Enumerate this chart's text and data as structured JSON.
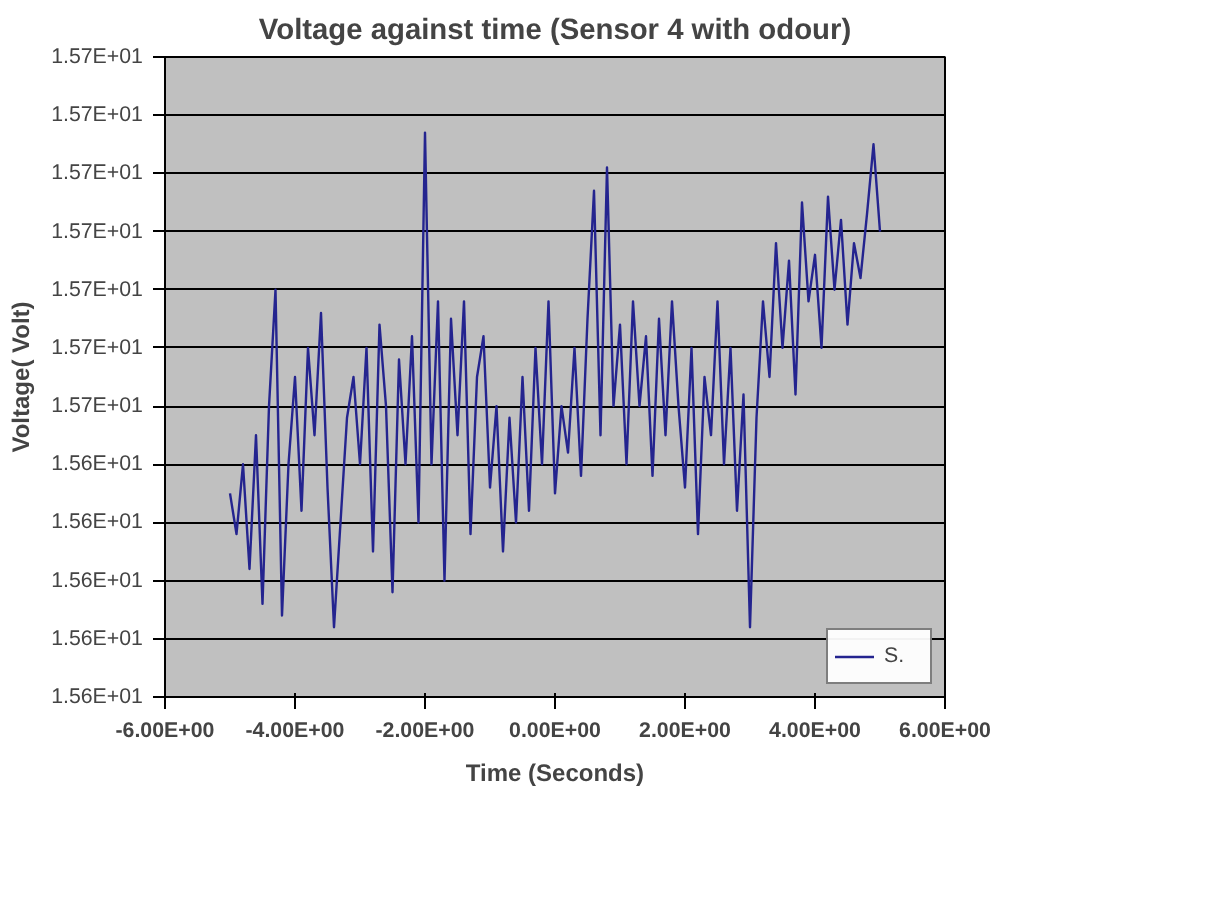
{
  "chart_data": {
    "type": "line",
    "title": "Voltage against time (Sensor 4 with odour)",
    "xlabel": "Time (Seconds)",
    "ylabel": "Voltage( Volt)",
    "x": [
      -5.0,
      -4.9,
      -4.8,
      -4.7,
      -4.6,
      -4.5,
      -4.4,
      -4.3,
      -4.2,
      -4.1,
      -4.0,
      -3.9,
      -3.8,
      -3.7,
      -3.6,
      -3.5,
      -3.4,
      -3.3,
      -3.2,
      -3.1,
      -3.0,
      -2.9,
      -2.8,
      -2.7,
      -2.6,
      -2.5,
      -2.4,
      -2.3,
      -2.2,
      -2.1,
      -2.0,
      -1.9,
      -1.8,
      -1.7,
      -1.6,
      -1.5,
      -1.4,
      -1.3,
      -1.2,
      -1.1,
      -1.0,
      -0.9,
      -0.8,
      -0.7,
      -0.6,
      -0.5,
      -0.4,
      -0.3,
      -0.2,
      -0.1,
      0.0,
      0.1,
      0.2,
      0.3,
      0.4,
      0.5,
      0.6,
      0.7,
      0.8,
      0.9,
      1.0,
      1.1,
      1.2,
      1.3,
      1.4,
      1.5,
      1.6,
      1.7,
      1.8,
      1.9,
      2.0,
      2.1,
      2.2,
      2.3,
      2.4,
      2.5,
      2.6,
      2.7,
      2.8,
      2.9,
      3.0,
      3.1,
      3.2,
      3.3,
      3.4,
      3.5,
      3.6,
      3.7,
      3.8,
      3.9,
      4.0,
      4.1,
      4.2,
      4.3,
      4.4,
      4.5,
      4.6,
      4.7,
      4.8,
      4.9,
      5.0
    ],
    "series": [
      {
        "name": "S.",
        "color": "#24248f",
        "values": [
          15.635,
          15.628,
          15.64,
          15.622,
          15.645,
          15.616,
          15.65,
          15.67,
          15.614,
          15.64,
          15.655,
          15.632,
          15.66,
          15.645,
          15.666,
          15.636,
          15.612,
          15.63,
          15.648,
          15.655,
          15.64,
          15.66,
          15.625,
          15.664,
          15.65,
          15.618,
          15.658,
          15.64,
          15.662,
          15.63,
          15.697,
          15.64,
          15.668,
          15.62,
          15.665,
          15.645,
          15.668,
          15.628,
          15.655,
          15.662,
          15.636,
          15.65,
          15.625,
          15.648,
          15.63,
          15.655,
          15.632,
          15.66,
          15.64,
          15.668,
          15.635,
          15.65,
          15.642,
          15.66,
          15.638,
          15.665,
          15.687,
          15.645,
          15.691,
          15.65,
          15.664,
          15.64,
          15.668,
          15.65,
          15.662,
          15.638,
          15.665,
          15.645,
          15.668,
          15.65,
          15.636,
          15.66,
          15.628,
          15.655,
          15.645,
          15.668,
          15.64,
          15.66,
          15.632,
          15.652,
          15.612,
          15.648,
          15.668,
          15.655,
          15.678,
          15.66,
          15.675,
          15.652,
          15.685,
          15.668,
          15.676,
          15.66,
          15.686,
          15.67,
          15.682,
          15.664,
          15.678,
          15.672,
          15.683,
          15.695,
          15.68
        ]
      }
    ],
    "xlim": [
      -6,
      6
    ],
    "xticks": [
      {
        "value": -6,
        "label": "-6.00E+00"
      },
      {
        "value": -4,
        "label": "-4.00E+00"
      },
      {
        "value": -2,
        "label": "-2.00E+00"
      },
      {
        "value": 0,
        "label": "0.00E+00"
      },
      {
        "value": 2,
        "label": "2.00E+00"
      },
      {
        "value": 4,
        "label": "4.00E+00"
      },
      {
        "value": 6,
        "label": "6.00E+00"
      }
    ],
    "ylim": [
      15.6,
      15.71
    ],
    "yticks": [
      {
        "value": 15.6,
        "label": "1.56E+01"
      },
      {
        "value": 15.61,
        "label": "1.56E+01"
      },
      {
        "value": 15.62,
        "label": "1.56E+01"
      },
      {
        "value": 15.63,
        "label": "1.56E+01"
      },
      {
        "value": 15.64,
        "label": "1.56E+01"
      },
      {
        "value": 15.65,
        "label": "1.57E+01"
      },
      {
        "value": 15.66,
        "label": "1.57E+01"
      },
      {
        "value": 15.67,
        "label": "1.57E+01"
      },
      {
        "value": 15.68,
        "label": "1.57E+01"
      },
      {
        "value": 15.69,
        "label": "1.57E+01"
      },
      {
        "value": 15.7,
        "label": "1.57E+01"
      },
      {
        "value": 15.71,
        "label": "1.57E+01"
      }
    ],
    "grid": "y",
    "legend": "bottom right",
    "marker": "none",
    "line_style": "solid"
  }
}
